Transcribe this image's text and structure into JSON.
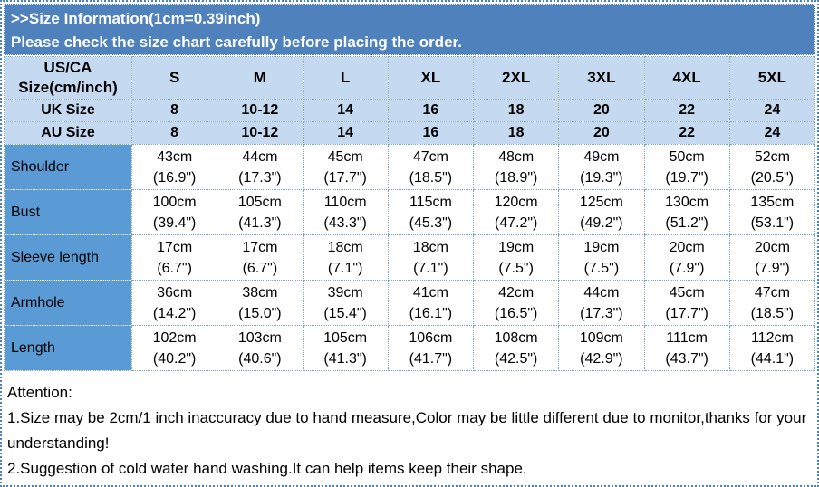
{
  "header": {
    "title": ">>Size Information(1cm=0.39inch)",
    "subtitle": "Please check the size chart carefully before placing the order."
  },
  "table": {
    "corner": {
      "line1": "US/CA",
      "line2": "Size(cm/inch)"
    },
    "sizes": [
      "S",
      "M",
      "L",
      "XL",
      "2XL",
      "3XL",
      "4XL",
      "5XL"
    ],
    "uk_row": {
      "label": "UK Size",
      "values": [
        "8",
        "10-12",
        "14",
        "16",
        "18",
        "20",
        "22",
        "24"
      ]
    },
    "au_row": {
      "label": "AU Size",
      "values": [
        "8",
        "10-12",
        "14",
        "16",
        "18",
        "20",
        "22",
        "24"
      ]
    },
    "measurements": [
      {
        "label": "Shoulder",
        "cm": [
          "43cm",
          "44cm",
          "45cm",
          "47cm",
          "48cm",
          "49cm",
          "50cm",
          "52cm"
        ],
        "inch": [
          "(16.9\")",
          "(17.3\")",
          "(17.7\")",
          "(18.5\")",
          "(18.9\")",
          "(19.3\")",
          "(19.7\")",
          "(20.5\")"
        ]
      },
      {
        "label": "Bust",
        "cm": [
          "100cm",
          "105cm",
          "110cm",
          "115cm",
          "120cm",
          "125cm",
          "130cm",
          "135cm"
        ],
        "inch": [
          "(39.4\")",
          "(41.3\")",
          "(43.3\")",
          "(45.3\")",
          "(47.2\")",
          "(49.2\")",
          "(51.2\")",
          "(53.1\")"
        ]
      },
      {
        "label": "Sleeve length",
        "cm": [
          "17cm",
          "17cm",
          "18cm",
          "18cm",
          "19cm",
          "19cm",
          "20cm",
          "20cm"
        ],
        "inch": [
          "(6.7\")",
          "(6.7\")",
          "(7.1\")",
          "(7.1\")",
          "(7.5\")",
          "(7.5\")",
          "(7.9\")",
          "(7.9\")"
        ]
      },
      {
        "label": "Armhole",
        "cm": [
          "36cm",
          "38cm",
          "39cm",
          "41cm",
          "42cm",
          "44cm",
          "45cm",
          "47cm"
        ],
        "inch": [
          "(14.2\")",
          "(15.0\")",
          "(15.4\")",
          "(16.1\")",
          "(16.5\")",
          "(17.3\")",
          "(17.7\")",
          "(18.5\")"
        ]
      },
      {
        "label": "Length",
        "cm": [
          "102cm",
          "103cm",
          "105cm",
          "106cm",
          "108cm",
          "109cm",
          "111cm",
          "112cm"
        ],
        "inch": [
          "(40.2\")",
          "(40.6\")",
          "(41.3\")",
          "(41.7\")",
          "(42.5\")",
          "(42.9\")",
          "(43.7\")",
          "(44.1\")"
        ]
      }
    ]
  },
  "attention": {
    "title": "Attention:",
    "note1": "1.Size may be 2cm/1 inch inaccuracy due to hand measure,Color may be little different due to monitor,thanks for your understanding!",
    "note2": "2.Suggestion of cold water hand washing.It can help items keep their shape."
  },
  "colors": {
    "header_bar": "#4F81BD",
    "label_cell": "#5B9BD5",
    "light_row": "#C5D9F0",
    "grid_dots": "#7BA3D0",
    "frame_border": "#4F81BD",
    "text_dark": "#000000",
    "text_light": "#FFFFFF"
  }
}
